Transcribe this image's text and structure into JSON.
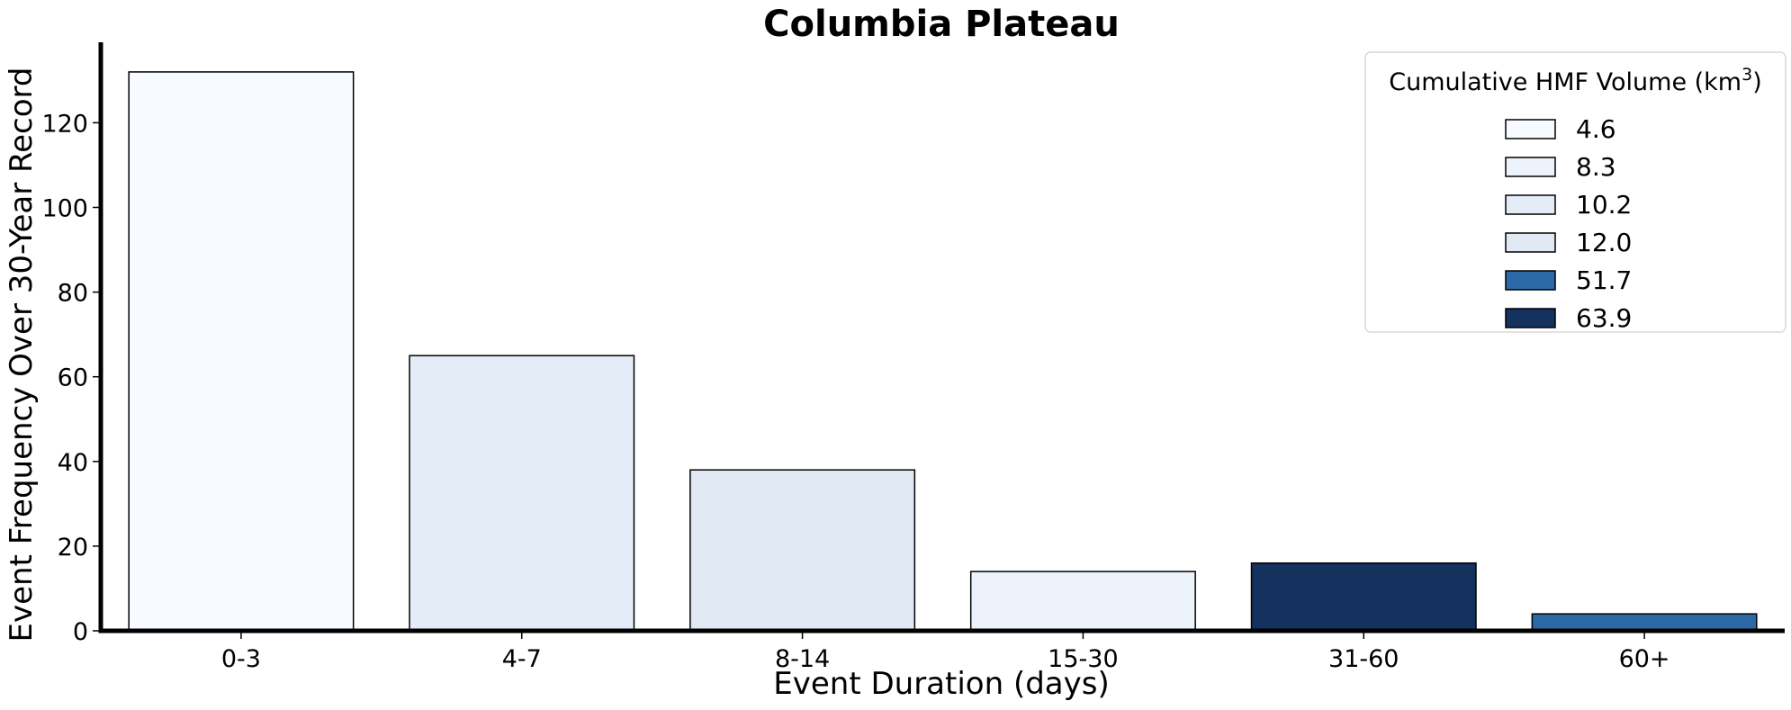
{
  "chart_data": {
    "type": "bar",
    "title": "Columbia Plateau",
    "xlabel": "Event Duration (days)",
    "ylabel": "Event Frequency Over 30-Year Record",
    "categories": [
      "0-3",
      "4-7",
      "8-14",
      "15-30",
      "31-60",
      "60+"
    ],
    "values": [
      132,
      65,
      38,
      14,
      16,
      4
    ],
    "bar_colors": [
      "#f7fbff",
      "#e4edf7",
      "#e1eaf4",
      "#edf3fa",
      "#15325f",
      "#2b68a6"
    ],
    "ylim": [
      0,
      139
    ],
    "yticks": [
      0,
      20,
      40,
      60,
      80,
      100,
      120
    ],
    "grid": false,
    "legend": {
      "title_prefix": "Cumulative HMF Volume (km",
      "title_sup": "3",
      "title_suffix": ")",
      "placement": "top-right",
      "entries": [
        {
          "label": "4.6",
          "color": "#f7fbff"
        },
        {
          "label": "8.3",
          "color": "#edf3fa"
        },
        {
          "label": "10.2",
          "color": "#e4edf7"
        },
        {
          "label": "12.0",
          "color": "#e1eaf4"
        },
        {
          "label": "51.7",
          "color": "#2b68a6"
        },
        {
          "label": "63.9",
          "color": "#15325f"
        }
      ]
    }
  }
}
